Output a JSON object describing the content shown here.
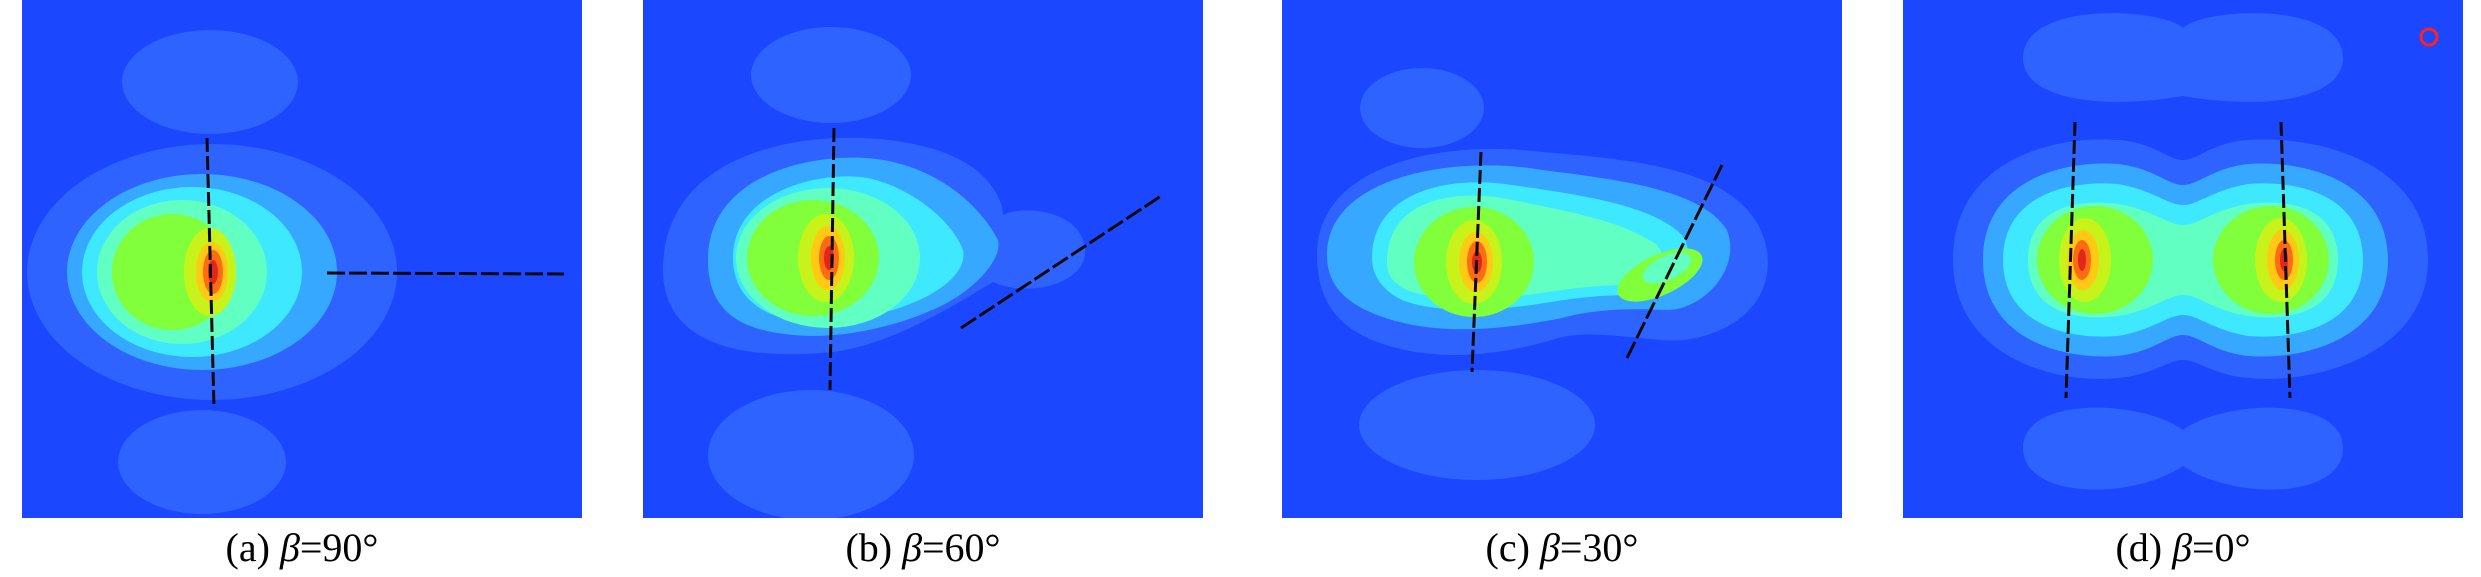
{
  "panels": [
    {
      "id": "a",
      "label_prefix": "(a) ",
      "symbol": "β",
      "label_value": "=90°"
    },
    {
      "id": "b",
      "label_prefix": "(b) ",
      "symbol": "β",
      "label_value": "=60°"
    },
    {
      "id": "c",
      "label_prefix": "(c) ",
      "symbol": "β",
      "label_value": "=30°"
    },
    {
      "id": "d",
      "label_prefix": "(d) ",
      "symbol": "β",
      "label_value": "=0°"
    }
  ],
  "colors": {
    "background": "#1a47ff",
    "level1": "#2e63ff",
    "level2": "#37a8ff",
    "level3": "#3ee8ff",
    "level4": "#61ffc2",
    "level5": "#80ff3a",
    "level6": "#c7f31b",
    "level7": "#ffc914",
    "level8": "#ff6a14",
    "level9": "#e0281a",
    "crack": "#0a0a0a",
    "marker": "#ff2020"
  }
}
